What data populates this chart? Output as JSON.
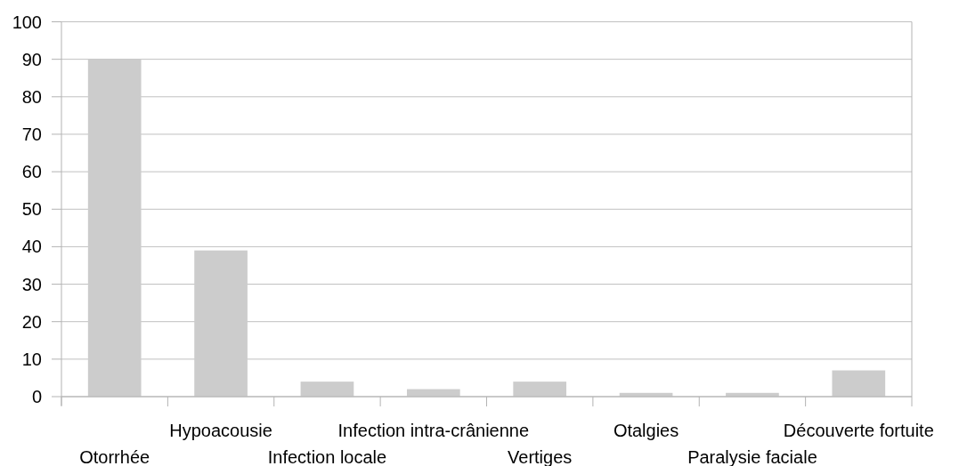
{
  "chart_data": {
    "type": "bar",
    "categories": [
      "Otorrhée",
      "Hypoacousie",
      "Infection locale",
      "Infection intra-crânienne",
      "Vertiges",
      "Otalgies",
      "Paralysie faciale",
      "Découverte fortuite"
    ],
    "values": [
      90,
      39,
      4,
      2,
      4,
      1,
      1,
      7
    ],
    "color": "#cccccc",
    "ylim": [
      0,
      100
    ],
    "yticks": [
      0,
      10,
      20,
      30,
      40,
      50,
      60,
      70,
      80,
      90,
      100
    ],
    "grid": "y"
  }
}
